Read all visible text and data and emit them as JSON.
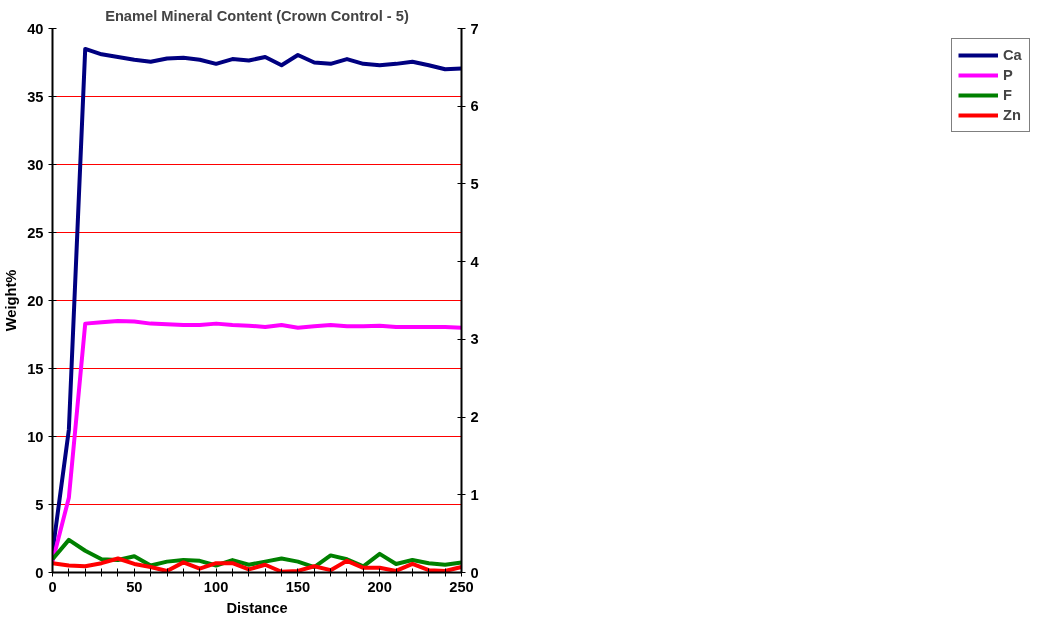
{
  "chart_data": {
    "type": "line",
    "title": "Enamel Mineral Content (Crown Control - 5)",
    "xlabel": "Distance",
    "ylabel": "Weight%",
    "x": [
      0,
      10,
      20,
      30,
      40,
      50,
      60,
      70,
      80,
      90,
      100,
      110,
      120,
      130,
      140,
      150,
      160,
      170,
      180,
      190,
      200,
      210,
      220,
      230,
      240,
      250
    ],
    "series": [
      {
        "name": "Ca",
        "color": "#000080",
        "values": [
          1.5,
          10.5,
          38.5,
          38.1,
          37.9,
          37.7,
          37.55,
          37.8,
          37.85,
          37.7,
          37.4,
          37.75,
          37.65,
          37.9,
          37.3,
          38.05,
          37.5,
          37.4,
          37.75,
          37.4,
          37.3,
          37.4,
          37.55,
          37.3,
          37.0,
          37.05
        ]
      },
      {
        "name": "P",
        "color": "#ff00ff",
        "values": [
          0.8,
          5.5,
          18.3,
          18.4,
          18.5,
          18.45,
          18.3,
          18.25,
          18.2,
          18.2,
          18.3,
          18.2,
          18.15,
          18.05,
          18.2,
          18.0,
          18.1,
          18.2,
          18.1,
          18.1,
          18.15,
          18.05,
          18.05,
          18.05,
          18.05,
          18.0
        ]
      },
      {
        "name": "F",
        "color": "#008000",
        "axis": "y2",
        "values": [
          0.17,
          0.42,
          0.28,
          0.17,
          0.16,
          0.21,
          0.09,
          0.14,
          0.16,
          0.15,
          0.09,
          0.16,
          0.1,
          0.14,
          0.18,
          0.14,
          0.07,
          0.22,
          0.17,
          0.08,
          0.24,
          0.11,
          0.16,
          0.12,
          0.1,
          0.13
        ]
      },
      {
        "name": "Zn",
        "color": "#ff0000",
        "axis": "y2",
        "values": [
          0.12,
          0.09,
          0.08,
          0.12,
          0.18,
          0.11,
          0.07,
          0.02,
          0.13,
          0.05,
          0.12,
          0.12,
          0.04,
          0.1,
          0.01,
          0.02,
          0.08,
          0.03,
          0.15,
          0.06,
          0.06,
          0.02,
          0.11,
          0.03,
          0.02,
          0.07
        ]
      }
    ],
    "xlim": [
      0,
      250
    ],
    "xticks": [
      0,
      {
        "value": 10,
        "label": null
      },
      {
        "value": 20,
        "label": null
      },
      {
        "value": 30,
        "label": null
      },
      {
        "value": 40,
        "label": null
      },
      50,
      {
        "value": 60,
        "label": null
      },
      {
        "value": 70,
        "label": null
      },
      {
        "value": 80,
        "label": null
      },
      {
        "value": 90,
        "label": null
      },
      100,
      {
        "value": 110,
        "label": null
      },
      {
        "value": 120,
        "label": null
      },
      {
        "value": 130,
        "label": null
      },
      {
        "value": 140,
        "label": null
      },
      150,
      {
        "value": 160,
        "label": null
      },
      {
        "value": 170,
        "label": null
      },
      {
        "value": 180,
        "label": null
      },
      {
        "value": 190,
        "label": null
      },
      200,
      {
        "value": 210,
        "label": null
      },
      {
        "value": 220,
        "label": null
      },
      {
        "value": 230,
        "label": null
      },
      {
        "value": 240,
        "label": null
      },
      250
    ],
    "ylim": [
      0,
      40
    ],
    "yticks": [
      0,
      5,
      10,
      15,
      20,
      25,
      30,
      35,
      40
    ],
    "y2lim": [
      0,
      7
    ],
    "y2ticks": [
      0,
      1,
      2,
      3,
      4,
      5,
      6,
      7
    ],
    "grid": "y",
    "legend": "right",
    "marker": "none",
    "line_style": "solid"
  }
}
